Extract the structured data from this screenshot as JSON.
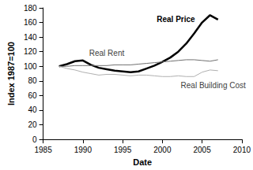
{
  "chart_data": {
    "type": "line",
    "x_label": "Date",
    "y_label": "Index 1987=100",
    "x": [
      1987,
      1988,
      1989,
      1990,
      1991,
      1992,
      1993,
      1994,
      1995,
      1996,
      1997,
      1998,
      1999,
      2000,
      2001,
      2002,
      2003,
      2004,
      2005,
      2006,
      2007
    ],
    "series": [
      {
        "name": "Real Price",
        "color": "#000000",
        "values": [
          100,
          103,
          107,
          108,
          102,
          98,
          96,
          94,
          93,
          92,
          93,
          97,
          101,
          106,
          112,
          120,
          131,
          145,
          160,
          170,
          164
        ]
      },
      {
        "name": "Real Rent",
        "color": "#707070",
        "values": [
          100,
          100,
          101,
          101,
          101,
          101,
          101,
          102,
          102,
          102,
          103,
          104,
          105,
          106,
          107,
          108,
          109,
          109,
          108,
          107,
          109
        ]
      },
      {
        "name": "Real Building Cost",
        "color": "#b0b0b0",
        "values": [
          100,
          97,
          95,
          92,
          90,
          88,
          89,
          89,
          88,
          87,
          88,
          88,
          87,
          86,
          86,
          87,
          86,
          86,
          92,
          95,
          94
        ]
      }
    ],
    "xlim": [
      1985,
      2010
    ],
    "xticks": [
      1985,
      1990,
      1995,
      2000,
      2005,
      2010
    ],
    "ylim": [
      0,
      180
    ],
    "yticks": [
      0,
      20,
      40,
      60,
      80,
      100,
      120,
      140,
      160,
      180
    ],
    "grid": false
  }
}
